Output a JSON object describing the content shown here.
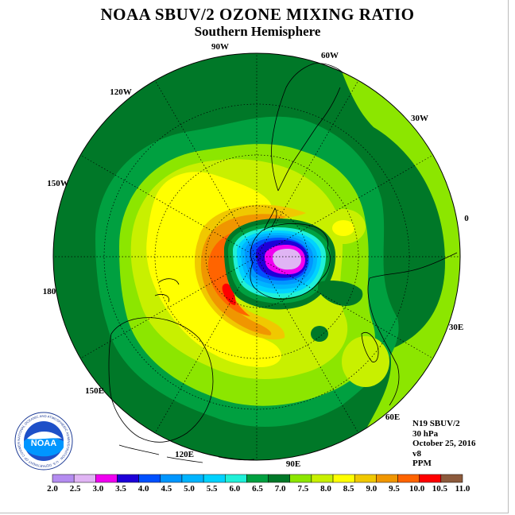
{
  "title": "NOAA SBUV/2 OZONE MIXING RATIO",
  "subtitle": "Southern Hemisphere",
  "longitude_labels": {
    "lon_90w": "90W",
    "lon_60w": "60W",
    "lon_120w": "120W",
    "lon_30w": "30W",
    "lon_150w": "150W",
    "lon_0": "0",
    "lon_180": "180",
    "lon_30e": "30E",
    "lon_150e": "150E",
    "lon_60e": "60E",
    "lon_120e": "120E",
    "lon_90e": "90E"
  },
  "info": {
    "satellite": "N19 SBUV/2",
    "pressure": "30 hPa",
    "date": "October 25, 2016",
    "version": "v8",
    "units": "PPM"
  },
  "logo": {
    "text": "NOAA",
    "ring_text": "NATIONAL OCEANIC AND ATMOSPHERIC ADMINISTRATION · U.S. DEPARTMENT OF COMMERCE"
  },
  "colorbar": {
    "levels": [
      "2.0",
      "2.5",
      "3.0",
      "3.5",
      "4.0",
      "4.5",
      "5.0",
      "5.5",
      "6.0",
      "6.5",
      "7.0",
      "7.5",
      "8.0",
      "8.5",
      "9.0",
      "9.5",
      "10.0",
      "10.5",
      "11.0"
    ],
    "colors": [
      "#b48cf0",
      "#e0b4f4",
      "#f000f0",
      "#1e00d8",
      "#0050ff",
      "#0096ff",
      "#00b4ff",
      "#00d2ff",
      "#20f0d8",
      "#00a040",
      "#007828",
      "#8ce600",
      "#c8f000",
      "#ffff00",
      "#f0c800",
      "#f09600",
      "#ff6400",
      "#ff0000",
      "#8c5a3c"
    ]
  },
  "map_colors": {
    "outer_band": "#007828",
    "mid_green": "#00a040",
    "light_green": "#8ce600",
    "yellow_green": "#c8f000",
    "yellow": "#ffff00",
    "orange": "#f0c800",
    "dark_orange": "#f09600",
    "red_orange": "#ff6400",
    "red": "#ff0000",
    "teal": "#20f0d8",
    "cyan": "#00d2ff",
    "sky": "#00b4ff",
    "blue": "#0096ff",
    "royal": "#0050ff",
    "navy": "#1e00d8",
    "magenta": "#f000f0",
    "lilac": "#e0b4f4"
  }
}
